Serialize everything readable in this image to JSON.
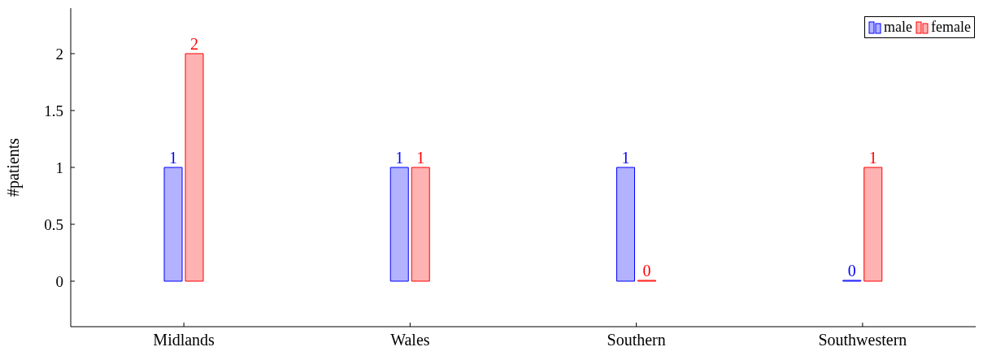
{
  "chart_data": {
    "type": "bar",
    "ylabel": "#patients",
    "categories": [
      "Midlands",
      "Wales",
      "Southern",
      "Southwestern"
    ],
    "series": [
      {
        "name": "male",
        "color": "#0000ff",
        "values": [
          1,
          1,
          1,
          0
        ]
      },
      {
        "name": "female",
        "color": "#ff0000",
        "values": [
          2,
          1,
          0,
          1
        ]
      }
    ],
    "ylim": [
      -0.4,
      2.4
    ],
    "yticks": [
      0,
      0.5,
      1,
      1.5,
      2
    ],
    "data_labels": true,
    "grid": false,
    "legend": "top right"
  }
}
